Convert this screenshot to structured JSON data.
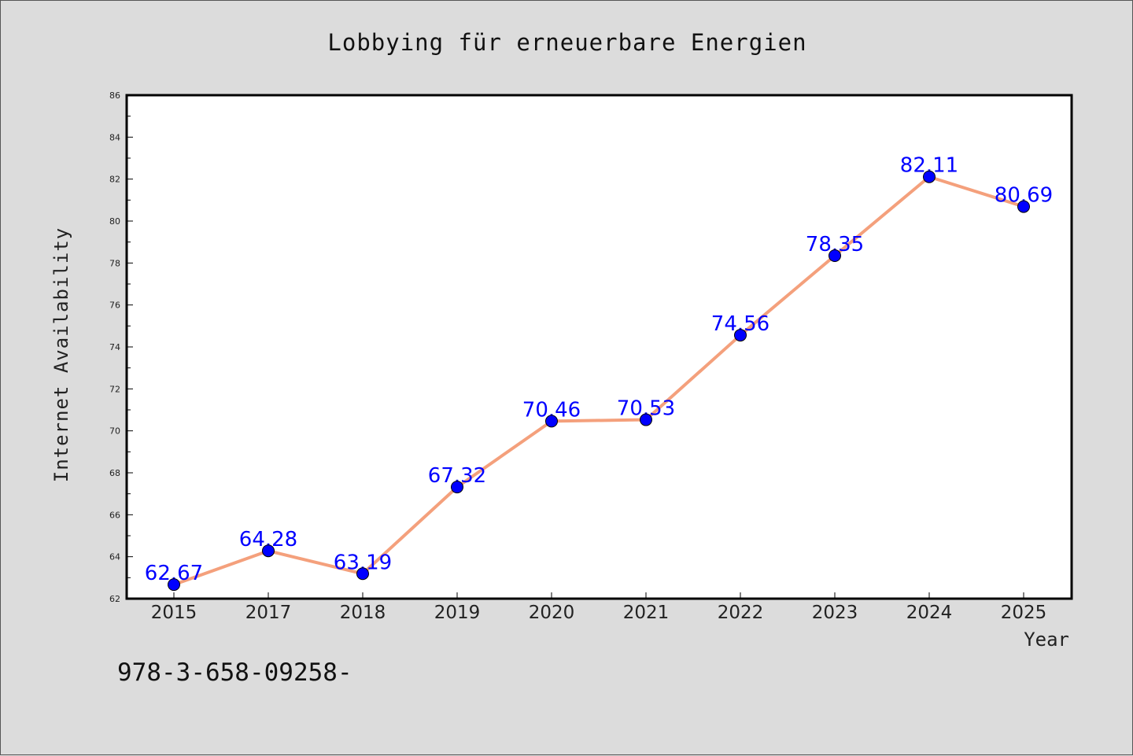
{
  "chart_data": {
    "type": "line",
    "title": "Lobbying für erneuerbare Energien",
    "xlabel": "Year",
    "ylabel": "Internet Availability",
    "categories": [
      "2015",
      "2017",
      "2018",
      "2019",
      "2020",
      "2021",
      "2022",
      "2023",
      "2024",
      "2025"
    ],
    "values": [
      62.67,
      64.28,
      63.19,
      67.32,
      70.46,
      70.53,
      74.56,
      78.35,
      82.11,
      80.69
    ],
    "data_labels": [
      "62.67",
      "64.28",
      "63.19",
      "67.32",
      "70.46",
      "70.53",
      "74.56",
      "78.35",
      "82.11",
      "80.69"
    ],
    "ylim": [
      62,
      86
    ],
    "yticks": [
      "62",
      "64",
      "66",
      "68",
      "70",
      "72",
      "74",
      "76",
      "78",
      "80",
      "82",
      "84",
      "86"
    ],
    "grid": false,
    "line_color": "#f4a07c",
    "marker_color": "#0000ff",
    "label_color": "#0000ff"
  },
  "footer_note": "978-3-658-09258-"
}
